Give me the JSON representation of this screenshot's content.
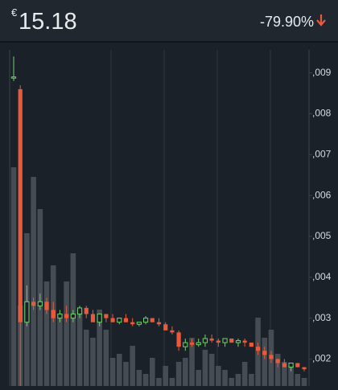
{
  "header": {
    "currency": "€",
    "price": "15.18",
    "change": "-79.90%"
  },
  "chart_data": {
    "type": "candlestick",
    "ylim": [
      0.00134,
      0.00972
    ],
    "yticks": [
      {
        "value": 0.009,
        "label": ",009"
      },
      {
        "value": 0.008,
        "label": ",008"
      },
      {
        "value": 0.007,
        "label": ",007"
      },
      {
        "value": 0.006,
        "label": ",006"
      },
      {
        "value": 0.005,
        "label": ",005"
      },
      {
        "value": 0.004,
        "label": ",004"
      },
      {
        "value": 0.003,
        "label": ",003"
      },
      {
        "value": 0.002,
        "label": ",002"
      }
    ],
    "up_color": "#6fd36a",
    "down_color": "#ea5a3a",
    "volume_color": "#4b5159",
    "open": [
      0.0089,
      0.0086,
      0.0029,
      0.0034,
      0.0033,
      0.0034,
      0.0032,
      0.003,
      0.0031,
      0.003,
      0.0031,
      0.00325,
      0.0031,
      0.0029,
      0.0031,
      0.003,
      0.0029,
      0.003,
      0.0029,
      0.00285,
      0.0029,
      0.003,
      0.0029,
      0.00285,
      0.0027,
      0.00265,
      0.0023,
      0.0024,
      0.00235,
      0.0024,
      0.0025,
      0.00245,
      0.0024,
      0.0025,
      0.0024,
      0.00245,
      0.0024,
      0.0023,
      0.0022,
      0.0021,
      0.002,
      0.0019,
      0.0018,
      0.0019,
      0.0018
    ],
    "high": [
      0.0094,
      0.0087,
      0.0038,
      0.0035,
      0.0036,
      0.0035,
      0.0034,
      0.0032,
      0.0033,
      0.0032,
      0.0033,
      0.0033,
      0.0032,
      0.0031,
      0.0031,
      0.0031,
      0.003,
      0.0031,
      0.003,
      0.0029,
      0.00305,
      0.003,
      0.003,
      0.0029,
      0.0028,
      0.0027,
      0.0025,
      0.0025,
      0.0025,
      0.0026,
      0.0026,
      0.0025,
      0.0025,
      0.0025,
      0.0025,
      0.0025,
      0.0024,
      0.0024,
      0.0023,
      0.0022,
      0.002,
      0.002,
      0.0019,
      0.0019,
      0.0018
    ],
    "low": [
      0.0088,
      0.0013,
      0.0028,
      0.0032,
      0.0032,
      0.0031,
      0.0029,
      0.0029,
      0.0029,
      0.0029,
      0.003,
      0.003,
      0.0029,
      0.0028,
      0.0029,
      0.0029,
      0.00285,
      0.0029,
      0.0028,
      0.0028,
      0.00285,
      0.0029,
      0.0028,
      0.0027,
      0.0026,
      0.0022,
      0.0022,
      0.0023,
      0.0023,
      0.0023,
      0.0024,
      0.0023,
      0.0023,
      0.0024,
      0.0023,
      0.0023,
      0.0023,
      0.0021,
      0.002,
      0.0019,
      0.0018,
      0.0018,
      0.0017,
      0.0018,
      0.0017
    ],
    "close": [
      0.0089,
      0.0029,
      0.0034,
      0.0033,
      0.0034,
      0.0032,
      0.003,
      0.0031,
      0.003,
      0.0031,
      0.00325,
      0.0031,
      0.0029,
      0.0031,
      0.003,
      0.0029,
      0.003,
      0.0029,
      0.00285,
      0.0029,
      0.003,
      0.0029,
      0.00285,
      0.0027,
      0.00265,
      0.0023,
      0.0024,
      0.00235,
      0.0024,
      0.0025,
      0.00245,
      0.0024,
      0.0025,
      0.0024,
      0.00245,
      0.0024,
      0.0023,
      0.0022,
      0.0021,
      0.002,
      0.0019,
      0.0018,
      0.0019,
      0.0018,
      0.00175
    ],
    "volume": [
      272,
      100,
      190,
      260,
      220,
      130,
      150,
      90,
      130,
      165,
      95,
      70,
      60,
      95,
      70,
      35,
      40,
      30,
      50,
      20,
      15,
      35,
      10,
      25,
      10,
      30,
      35,
      60,
      20,
      45,
      40,
      25,
      20,
      10,
      15,
      30,
      15,
      85,
      60,
      70,
      40,
      30,
      25,
      15,
      10
    ]
  }
}
